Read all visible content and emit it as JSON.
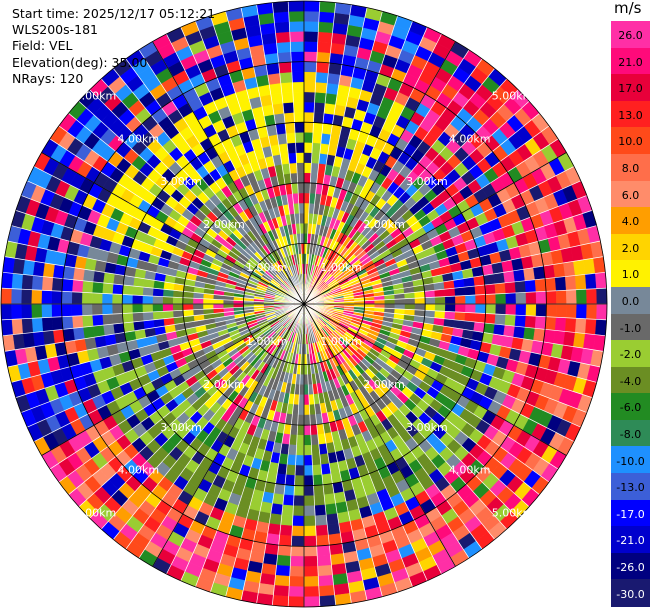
{
  "info": {
    "start_time": "Start time: 2025/12/17 05:12:21",
    "instrument": "WLS200s-181",
    "field": "Field: VEL",
    "elevation": "Elevation(deg): 35.00",
    "nrays": "NRays: 120"
  },
  "range_labels": [
    "1.00km",
    "2.00km",
    "3.00km",
    "4.00km",
    "5.00km"
  ],
  "colorbar": {
    "unit": "m/s",
    "ticks": [
      "26.0",
      "21.0",
      "17.0",
      "13.0",
      "10.0",
      "8.0",
      "6.0",
      "4.0",
      "2.0",
      "1.0",
      "0.0",
      "-1.0",
      "-2.0",
      "-4.0",
      "-6.0",
      "-8.0",
      "-10.0",
      "-13.0",
      "-17.0",
      "-21.0",
      "-26.0",
      "-30.0"
    ],
    "colors": [
      "#ff2fa6",
      "#ff0a7a",
      "#e8003a",
      "#ff2020",
      "#ff4a1a",
      "#ff6e4a",
      "#ff8c6a",
      "#ff9e00",
      "#ffd400",
      "#fff200",
      "#778899",
      "#696969",
      "#9acd32",
      "#6b8e23",
      "#228b22",
      "#2e8b57",
      "#1e90ff",
      "#3c5fd8",
      "#0000ff",
      "#0000cd",
      "#000080",
      "#191970"
    ]
  }
}
